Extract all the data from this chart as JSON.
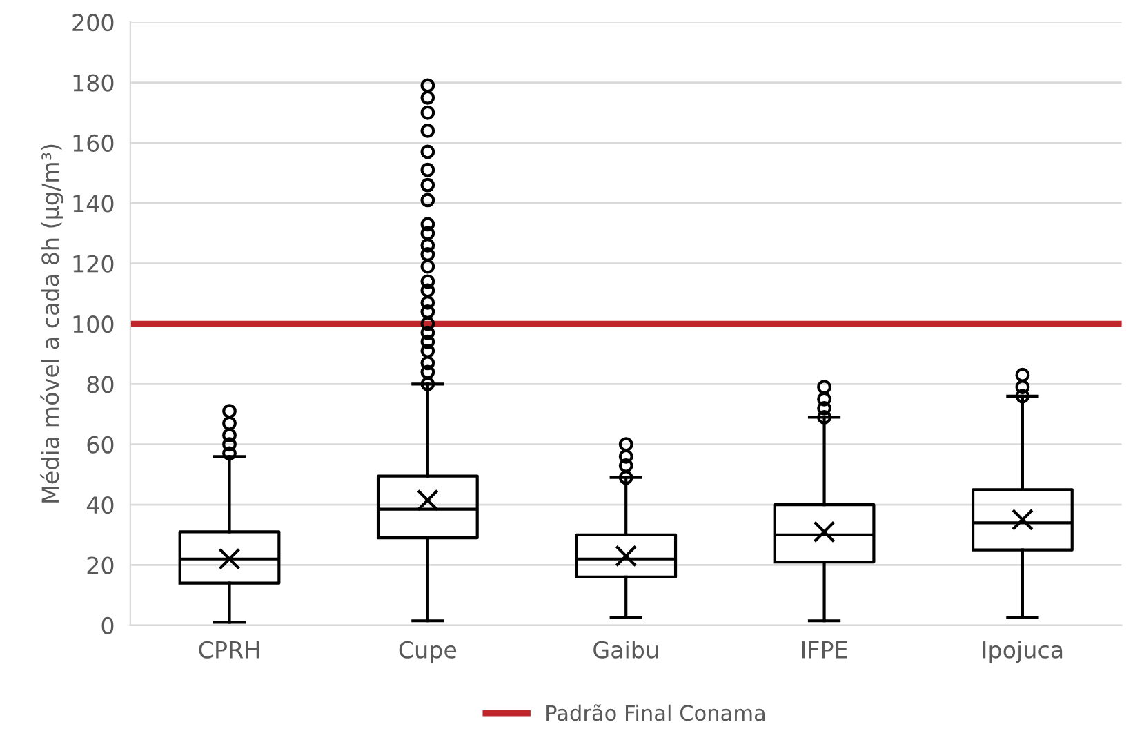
{
  "chart_data": {
    "type": "box",
    "ylabel": "Média móvel a cada 8h (µg/m³)",
    "categories": [
      "CPRH",
      "Cupe",
      "Gaibu",
      "IFPE",
      "Ipojuca"
    ],
    "boxes": [
      {
        "low": 1,
        "q1": 14,
        "median": 22,
        "q3": 31,
        "high": 56,
        "mean": 22,
        "outliers": [
          57,
          60,
          63,
          67,
          71
        ]
      },
      {
        "low": 1.5,
        "q1": 29,
        "median": 38.5,
        "q3": 49.5,
        "high": 80,
        "mean": 41.5,
        "outliers": [
          80,
          84,
          87,
          91,
          94,
          97,
          100,
          104,
          107,
          111,
          114,
          119,
          123,
          126,
          130,
          133,
          141,
          146,
          151,
          157,
          164,
          170,
          175,
          179
        ]
      },
      {
        "low": 2.5,
        "q1": 16,
        "median": 22,
        "q3": 30,
        "high": 49,
        "mean": 23,
        "outliers": [
          49,
          53,
          56,
          60
        ]
      },
      {
        "low": 1.5,
        "q1": 21,
        "median": 30,
        "q3": 40,
        "high": 69,
        "mean": 31,
        "outliers": [
          69,
          72,
          75,
          79
        ]
      },
      {
        "low": 2.5,
        "q1": 25,
        "median": 34,
        "q3": 45,
        "high": 76,
        "mean": 35,
        "outliers": [
          76,
          79,
          83
        ]
      }
    ],
    "ylim": [
      0,
      200
    ],
    "yticks": [
      0,
      20,
      40,
      60,
      80,
      100,
      120,
      140,
      160,
      180,
      200
    ],
    "grid": "y",
    "legend": "bottom",
    "ref_lines": [
      {
        "axis": "y",
        "value": 100,
        "label": "Padrão Final Conama",
        "color": "#c0272d"
      }
    ]
  }
}
